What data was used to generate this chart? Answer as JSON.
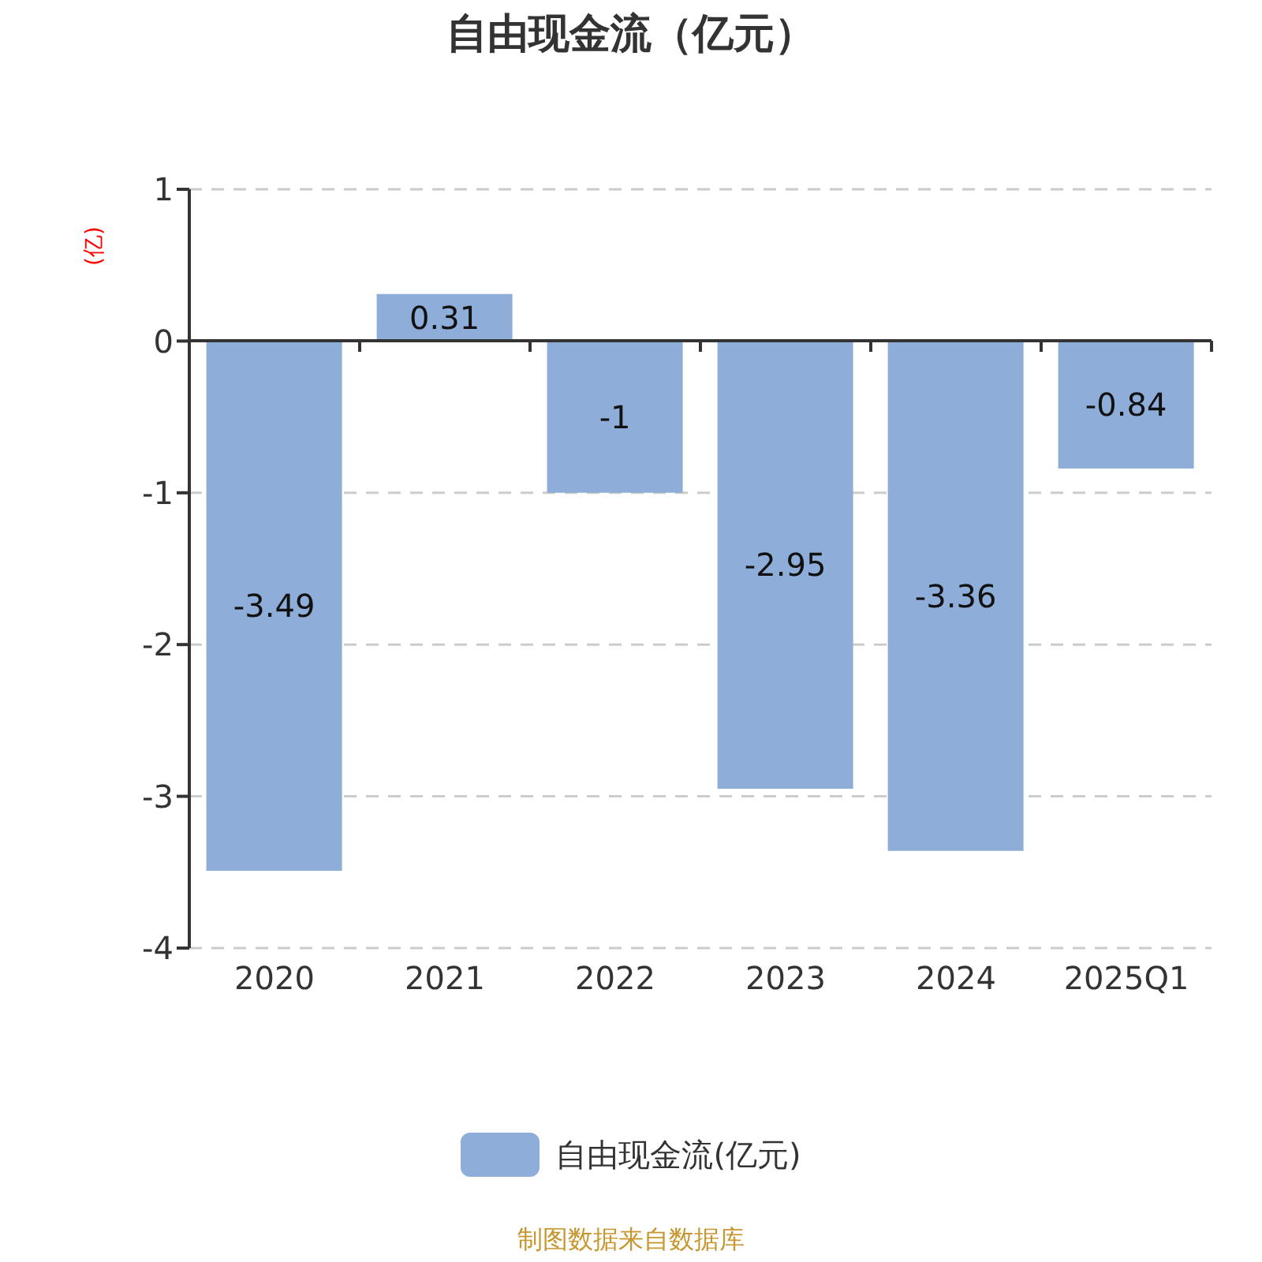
{
  "chart_data": {
    "type": "bar",
    "title": "自由现金流（亿元）",
    "ylabel": "(亿)",
    "categories": [
      "2020",
      "2021",
      "2022",
      "2023",
      "2024",
      "2025Q1"
    ],
    "series": [
      {
        "name": "自由现金流(亿元)",
        "color": "#8eadd9",
        "values": [
          -3.49,
          0.31,
          -1,
          -2.95,
          -3.36,
          -0.84
        ]
      }
    ],
    "ylim": [
      -4,
      1
    ],
    "yticks": [
      -4,
      -3,
      -2,
      -1,
      0,
      1
    ],
    "grid": "y",
    "legend": "bottom",
    "data_labels": true,
    "annotations": [
      "制图数据来自数据库"
    ]
  }
}
